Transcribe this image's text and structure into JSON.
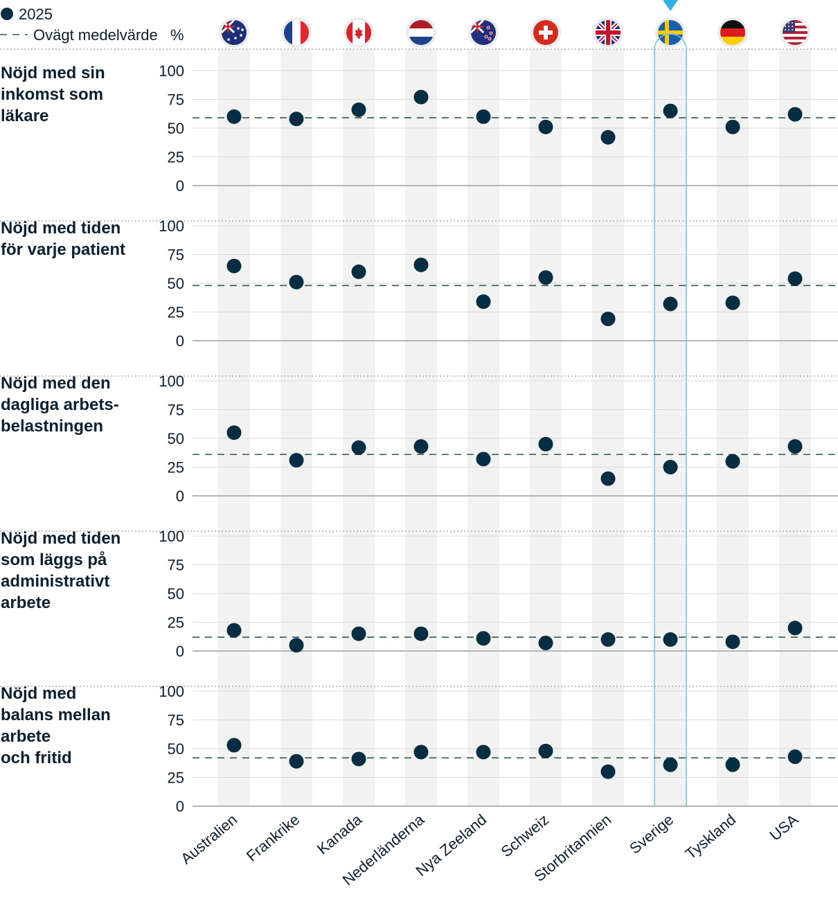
{
  "legend": {
    "series_label": "2025",
    "average_label": "Ovägt medelvärde",
    "unit_label": "%"
  },
  "colors": {
    "dot": "#062e42",
    "band": "#f2f2f2",
    "grid": "#dadada",
    "baseline": "#b5b5b5",
    "average_line": "#2e5a44",
    "highlight": "#6cc4dc",
    "text": "#0b1f2e"
  },
  "highlight_country": "Sverige",
  "chart_data": {
    "type": "scatter",
    "categories": [
      "Australien",
      "Frankrike",
      "Kanada",
      "Nederländerna",
      "Nya Zeeland",
      "Schweiz",
      "Storbritannien",
      "Sverige",
      "Tyskland",
      "USA"
    ],
    "flags": [
      "australia-flag",
      "france-flag",
      "canada-flag",
      "netherlands-flag",
      "new-zealand-flag",
      "switzerland-flag",
      "uk-flag",
      "sweden-flag",
      "germany-flag",
      "usa-flag"
    ],
    "ylim": [
      0,
      100
    ],
    "yticks": [
      0,
      25,
      50,
      75,
      100
    ],
    "ylabel": "%",
    "rows": [
      {
        "title_lines": [
          "Nöjd med sin",
          "inkomst som",
          "läkare"
        ],
        "values": [
          60,
          58,
          66,
          77,
          60,
          51,
          42,
          65,
          51,
          62
        ],
        "average": 59
      },
      {
        "title_lines": [
          "Nöjd med tiden",
          "för varje patient"
        ],
        "values": [
          65,
          51,
          60,
          66,
          34,
          55,
          19,
          32,
          33,
          54
        ],
        "average": 48
      },
      {
        "title_lines": [
          "Nöjd med den",
          "dagliga arbets-",
          "belastningen"
        ],
        "values": [
          55,
          31,
          42,
          43,
          32,
          45,
          15,
          25,
          30,
          43
        ],
        "average": 36
      },
      {
        "title_lines": [
          "Nöjd med tiden",
          "som läggs på",
          "administrativt",
          "arbete"
        ],
        "values": [
          18,
          5,
          15,
          15,
          11,
          7,
          10,
          10,
          8,
          20
        ],
        "average": 12
      },
      {
        "title_lines": [
          "Nöjd med",
          "balans mellan",
          "arbete",
          "och fritid"
        ],
        "values": [
          53,
          39,
          41,
          47,
          47,
          48,
          30,
          36,
          36,
          43
        ],
        "average": 42
      }
    ]
  }
}
